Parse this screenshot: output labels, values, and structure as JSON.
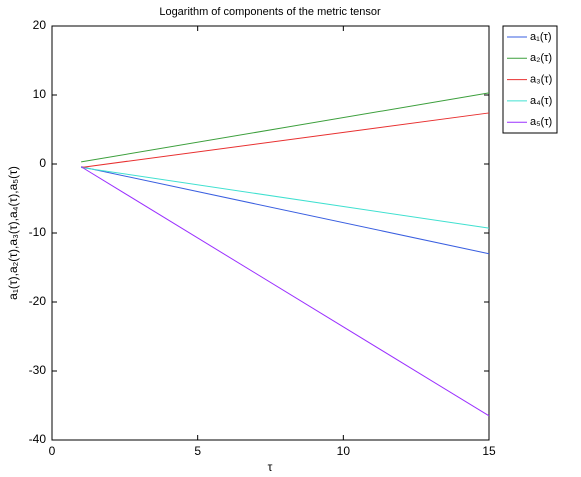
{
  "chart_data": {
    "type": "line",
    "title": "Logarithm of components of the metric tensor",
    "x_label": "τ",
    "y_label": "a₁(τ),a₂(τ),a₃(τ),a₄(τ),a₅(τ)",
    "x": [
      1,
      15
    ],
    "series": [
      {
        "name": "a₁(τ)",
        "color": "#3a5fe0",
        "values": [
          -0.4,
          -13.0
        ]
      },
      {
        "name": "a₂(τ)",
        "color": "#3c9f3c",
        "values": [
          0.3,
          10.3
        ]
      },
      {
        "name": "a₃(τ)",
        "color": "#e83030",
        "values": [
          -0.5,
          7.4
        ]
      },
      {
        "name": "a₄(τ)",
        "color": "#40e0d0",
        "values": [
          -0.5,
          -9.3
        ]
      },
      {
        "name": "a₅(τ)",
        "color": "#9b30ff",
        "values": [
          -0.4,
          -36.5
        ]
      }
    ],
    "xlim": [
      0,
      15
    ],
    "xticks": [
      0,
      5,
      10,
      15
    ],
    "ylim": [
      -40,
      20
    ],
    "yticks": [
      -40,
      -30,
      -20,
      -10,
      0,
      10,
      20
    ],
    "grid": false,
    "legend": "outside-right"
  }
}
